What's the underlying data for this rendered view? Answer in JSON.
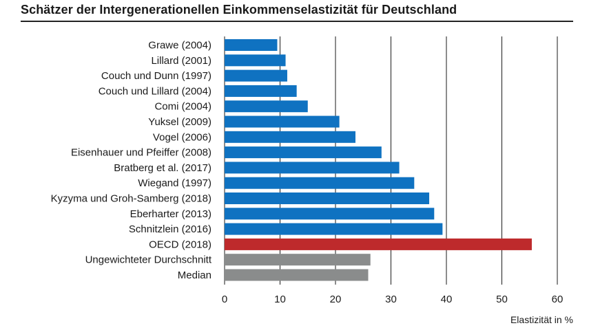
{
  "title": "Schätzer der Intergenerationellen Einkommenselastizität für Deutschland",
  "colors": {
    "standard": "#0f72c1",
    "oecd": "#be2a2c",
    "summary": "#8a8c8c",
    "gridline": "#1a1a1a"
  },
  "chart_data": {
    "type": "bar",
    "orientation": "horizontal",
    "title": "Schätzer der Intergenerationellen Einkommenselastizität für Deutschland",
    "xlabel": "Elastizität in %",
    "ylabel": "",
    "xlim": [
      0,
      60
    ],
    "xticks": [
      0,
      10,
      20,
      30,
      40,
      50,
      60
    ],
    "grid": "vertical",
    "categories": [
      "Grawe (2004)",
      "Lillard (2001)",
      "Couch und Dunn (1997)",
      "Couch und Lillard (2004)",
      "Comi (2004)",
      "Yuksel (2009)",
      "Vogel (2006)",
      "Eisenhauer und Pfeiffer (2008)",
      "Bratberg et al. (2017)",
      "Wiegand (1997)",
      "Kyzyma und Groh-Samberg (2018)",
      "Eberharter (2013)",
      "Schnitzlein (2016)",
      "OECD (2018)",
      "Ungewichteter Durchschnitt",
      "Median"
    ],
    "values": [
      9.5,
      11,
      11.3,
      13,
      15,
      20.7,
      23.6,
      28.3,
      31.5,
      34.2,
      36.9,
      37.8,
      39.3,
      55.4,
      26.3,
      25.9
    ],
    "bar_groups": [
      "standard",
      "standard",
      "standard",
      "standard",
      "standard",
      "standard",
      "standard",
      "standard",
      "standard",
      "standard",
      "standard",
      "standard",
      "standard",
      "oecd",
      "summary",
      "summary"
    ]
  }
}
